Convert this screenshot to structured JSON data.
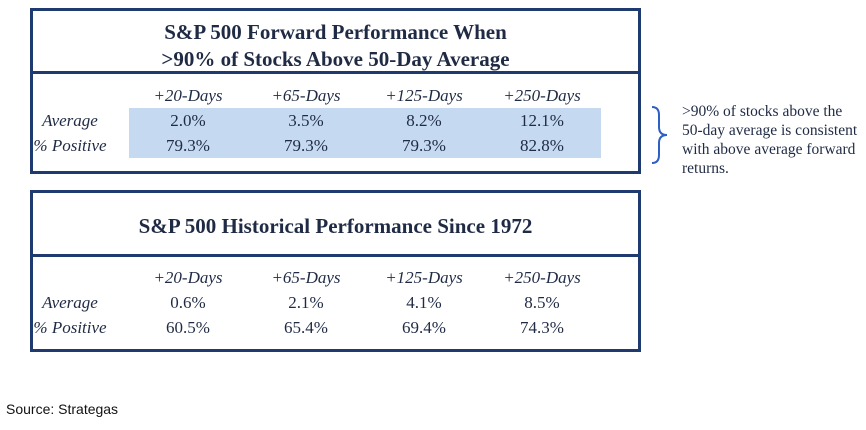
{
  "chart_data": [
    {
      "type": "table",
      "title_lines": [
        "S&P 500 Forward Performance When",
        ">90% of Stocks Above 50-Day Average"
      ],
      "columns": [
        "+20-Days",
        "+65-Days",
        "+125-Days",
        "+250-Days"
      ],
      "rows": [
        {
          "label": "Average",
          "values": [
            "2.0%",
            "3.5%",
            "8.2%",
            "12.1%"
          ]
        },
        {
          "label": "% Positive",
          "values": [
            "79.3%",
            "79.3%",
            "79.3%",
            "82.8%"
          ]
        }
      ],
      "highlight_color": "#c5d9f1"
    },
    {
      "type": "table",
      "title_lines": [
        "S&P 500 Historical Performance Since 1972"
      ],
      "columns": [
        "+20-Days",
        "+65-Days",
        "+125-Days",
        "+250-Days"
      ],
      "rows": [
        {
          "label": "Average",
          "values": [
            "0.6%",
            "2.1%",
            "4.1%",
            "8.5%"
          ]
        },
        {
          "label": "% Positive",
          "values": [
            "60.5%",
            "65.4%",
            "69.4%",
            "74.3%"
          ]
        }
      ]
    }
  ],
  "annotation": ">90% of stocks above the 50-day average is consistent with above average forward returns.",
  "source": "Source: Strategas",
  "colors": {
    "border": "#1f3a6e",
    "text": "#1f2a44",
    "brace": "#2f5fc4"
  }
}
